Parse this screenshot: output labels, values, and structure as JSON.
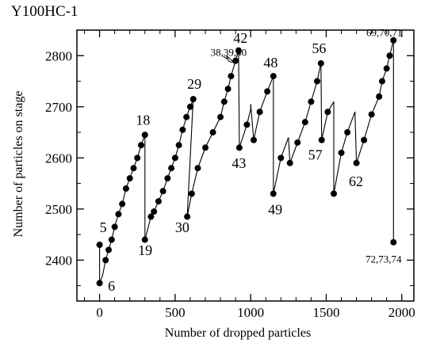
{
  "chart_data": {
    "type": "scatter",
    "title": "Y100HC-1",
    "xlabel": "Number of dropped particles",
    "ylabel": "Number of particles on stage",
    "xlim": [
      -150,
      2080
    ],
    "ylim": [
      2320,
      2850
    ],
    "xticks": [
      0,
      500,
      1000,
      1500,
      2000
    ],
    "yticks": [
      2400,
      2500,
      2600,
      2700,
      2800
    ],
    "grid": false,
    "segments": [
      {
        "points": [
          [
            0,
            2430
          ],
          [
            0,
            2355
          ]
        ]
      },
      {
        "points": [
          [
            0,
            2355
          ],
          [
            20,
            2370
          ],
          [
            40,
            2400
          ],
          [
            60,
            2420
          ],
          [
            80,
            2440
          ],
          [
            100,
            2465
          ],
          [
            125,
            2490
          ],
          [
            150,
            2510
          ],
          [
            175,
            2540
          ],
          [
            200,
            2560
          ],
          [
            225,
            2580
          ],
          [
            250,
            2600
          ],
          [
            275,
            2625
          ],
          [
            300,
            2645
          ]
        ]
      },
      {
        "points": [
          [
            300,
            2645
          ],
          [
            300,
            2440
          ]
        ]
      },
      {
        "points": [
          [
            300,
            2440
          ],
          [
            340,
            2485
          ],
          [
            360,
            2495
          ],
          [
            390,
            2515
          ],
          [
            420,
            2535
          ],
          [
            450,
            2560
          ],
          [
            475,
            2580
          ],
          [
            500,
            2600
          ],
          [
            525,
            2625
          ],
          [
            550,
            2655
          ],
          [
            575,
            2680
          ],
          [
            600,
            2700
          ],
          [
            620,
            2715
          ]
        ]
      },
      {
        "points": [
          [
            620,
            2715
          ],
          [
            580,
            2485
          ]
        ]
      },
      {
        "points": [
          [
            580,
            2485
          ],
          [
            610,
            2530
          ],
          [
            650,
            2580
          ],
          [
            700,
            2620
          ],
          [
            750,
            2650
          ],
          [
            800,
            2680
          ],
          [
            825,
            2710
          ],
          [
            850,
            2735
          ],
          [
            870,
            2760
          ],
          [
            900,
            2790
          ],
          [
            920,
            2810
          ]
        ]
      },
      {
        "points": [
          [
            920,
            2810
          ],
          [
            925,
            2620
          ]
        ]
      },
      {
        "points": [
          [
            925,
            2620
          ],
          [
            975,
            2665
          ],
          [
            1000,
            2695
          ],
          [
            1000,
            2705
          ]
        ]
      },
      {
        "points": [
          [
            1000,
            2705
          ],
          [
            1020,
            2635
          ]
        ]
      },
      {
        "points": [
          [
            1020,
            2635
          ],
          [
            1060,
            2690
          ],
          [
            1110,
            2730
          ],
          [
            1150,
            2760
          ]
        ]
      },
      {
        "points": [
          [
            1150,
            2760
          ],
          [
            1150,
            2530
          ]
        ]
      },
      {
        "points": [
          [
            1150,
            2530
          ],
          [
            1200,
            2600
          ],
          [
            1250,
            2640
          ]
        ]
      },
      {
        "points": [
          [
            1250,
            2640
          ],
          [
            1260,
            2590
          ]
        ]
      },
      {
        "points": [
          [
            1260,
            2590
          ],
          [
            1310,
            2630
          ],
          [
            1360,
            2670
          ],
          [
            1400,
            2710
          ],
          [
            1440,
            2750
          ],
          [
            1465,
            2785
          ]
        ]
      },
      {
        "points": [
          [
            1465,
            2785
          ],
          [
            1470,
            2635
          ]
        ]
      },
      {
        "points": [
          [
            1470,
            2635
          ],
          [
            1510,
            2690
          ],
          [
            1550,
            2710
          ]
        ]
      },
      {
        "points": [
          [
            1550,
            2710
          ],
          [
            1550,
            2530
          ]
        ]
      },
      {
        "points": [
          [
            1550,
            2530
          ],
          [
            1600,
            2610
          ],
          [
            1640,
            2650
          ],
          [
            1690,
            2690
          ]
        ]
      },
      {
        "points": [
          [
            1690,
            2690
          ],
          [
            1700,
            2590
          ]
        ]
      },
      {
        "points": [
          [
            1700,
            2590
          ],
          [
            1750,
            2635
          ],
          [
            1800,
            2685
          ],
          [
            1850,
            2720
          ],
          [
            1870,
            2750
          ],
          [
            1900,
            2775
          ],
          [
            1920,
            2800
          ],
          [
            1945,
            2830
          ]
        ]
      },
      {
        "points": [
          [
            1945,
            2830
          ],
          [
            1945,
            2435
          ]
        ]
      }
    ],
    "points": [
      [
        0,
        2430
      ],
      [
        0,
        2355
      ],
      [
        40,
        2400
      ],
      [
        60,
        2420
      ],
      [
        80,
        2440
      ],
      [
        100,
        2465
      ],
      [
        125,
        2490
      ],
      [
        150,
        2510
      ],
      [
        175,
        2540
      ],
      [
        200,
        2560
      ],
      [
        225,
        2580
      ],
      [
        250,
        2600
      ],
      [
        275,
        2625
      ],
      [
        300,
        2645
      ],
      [
        300,
        2440
      ],
      [
        340,
        2485
      ],
      [
        360,
        2495
      ],
      [
        390,
        2515
      ],
      [
        420,
        2535
      ],
      [
        450,
        2560
      ],
      [
        475,
        2580
      ],
      [
        500,
        2600
      ],
      [
        525,
        2625
      ],
      [
        550,
        2655
      ],
      [
        575,
        2680
      ],
      [
        600,
        2700
      ],
      [
        620,
        2715
      ],
      [
        580,
        2485
      ],
      [
        610,
        2530
      ],
      [
        650,
        2580
      ],
      [
        700,
        2620
      ],
      [
        750,
        2650
      ],
      [
        800,
        2680
      ],
      [
        825,
        2710
      ],
      [
        850,
        2735
      ],
      [
        870,
        2760
      ],
      [
        900,
        2790
      ],
      [
        920,
        2810
      ],
      [
        925,
        2620
      ],
      [
        975,
        2665
      ],
      [
        1020,
        2635
      ],
      [
        1060,
        2690
      ],
      [
        1110,
        2730
      ],
      [
        1150,
        2760
      ],
      [
        1150,
        2530
      ],
      [
        1200,
        2600
      ],
      [
        1260,
        2590
      ],
      [
        1310,
        2630
      ],
      [
        1360,
        2670
      ],
      [
        1400,
        2710
      ],
      [
        1440,
        2750
      ],
      [
        1465,
        2785
      ],
      [
        1470,
        2635
      ],
      [
        1510,
        2690
      ],
      [
        1550,
        2530
      ],
      [
        1600,
        2610
      ],
      [
        1640,
        2650
      ],
      [
        1700,
        2590
      ],
      [
        1750,
        2635
      ],
      [
        1800,
        2685
      ],
      [
        1850,
        2720
      ],
      [
        1870,
        2750
      ],
      [
        1900,
        2775
      ],
      [
        1920,
        2800
      ],
      [
        1945,
        2830
      ],
      [
        1945,
        2435
      ]
    ],
    "annotations": [
      {
        "text": "5",
        "x": 0,
        "y": 2455
      },
      {
        "text": "6",
        "x": 55,
        "y": 2340
      },
      {
        "text": "18",
        "x": 240,
        "y": 2665
      },
      {
        "text": "19",
        "x": 255,
        "y": 2410
      },
      {
        "text": "29",
        "x": 580,
        "y": 2735
      },
      {
        "text": "30",
        "x": 500,
        "y": 2455
      },
      {
        "text": "38,39,40",
        "x": 735,
        "y": 2800
      },
      {
        "text": "42",
        "x": 885,
        "y": 2825
      },
      {
        "text": "43",
        "x": 875,
        "y": 2580
      },
      {
        "text": "48",
        "x": 1085,
        "y": 2777
      },
      {
        "text": "49",
        "x": 1115,
        "y": 2490
      },
      {
        "text": "56",
        "x": 1405,
        "y": 2805
      },
      {
        "text": "57",
        "x": 1380,
        "y": 2597
      },
      {
        "text": "62",
        "x": 1650,
        "y": 2545
      },
      {
        "text": "69,70,71",
        "x": 1765,
        "y": 2838
      },
      {
        "text": "72,73,74",
        "x": 1760,
        "y": 2395
      }
    ]
  }
}
